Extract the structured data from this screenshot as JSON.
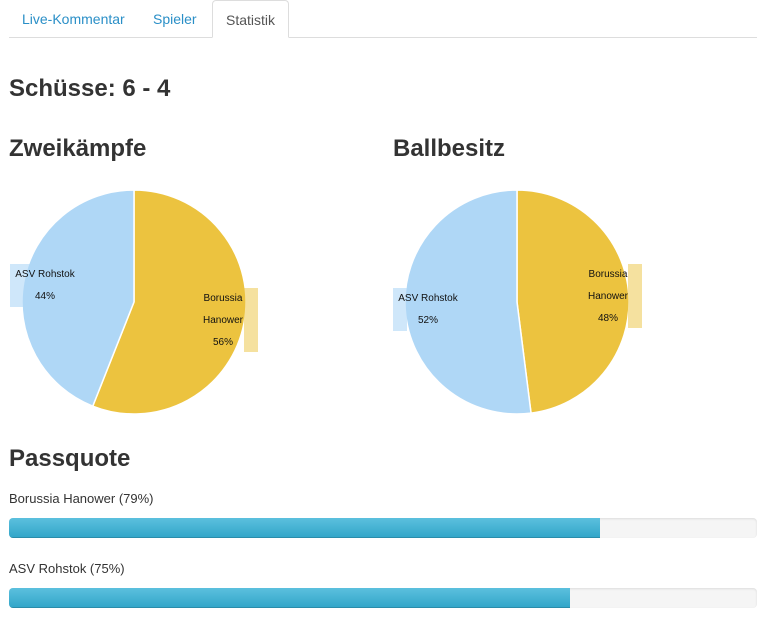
{
  "tabs": [
    {
      "label": "Live-Kommentar",
      "active": false
    },
    {
      "label": "Spieler",
      "active": false
    },
    {
      "label": "Statistik",
      "active": true
    }
  ],
  "shots": {
    "title": "Schüsse: 6 - 4"
  },
  "colors": {
    "home": "#ecc33f",
    "away": "#afd7f6",
    "bar": "#3fb0d3"
  },
  "chart_data": [
    {
      "type": "pie",
      "title": "Zweikämpfe",
      "labels": [
        "Borussia Hanower",
        "ASV Rohstok"
      ],
      "label_lines": [
        [
          "Borussia",
          "Hanower",
          "56%"
        ],
        [
          "ASV Rohstok",
          "44%"
        ]
      ],
      "values": [
        56,
        44
      ]
    },
    {
      "type": "pie",
      "title": "Ballbesitz",
      "labels": [
        "Borussia Hanower",
        "ASV Rohstok"
      ],
      "label_lines": [
        [
          "Borussia",
          "Hanower",
          "48%"
        ],
        [
          "ASV Rohstok",
          "52%"
        ]
      ],
      "values": [
        48,
        52
      ]
    }
  ],
  "passquote": {
    "title": "Passquote",
    "teams": [
      {
        "label": "Borussia Hanower (79%)",
        "percent": 79
      },
      {
        "label": "ASV Rohstok (75%)",
        "percent": 75
      }
    ]
  }
}
